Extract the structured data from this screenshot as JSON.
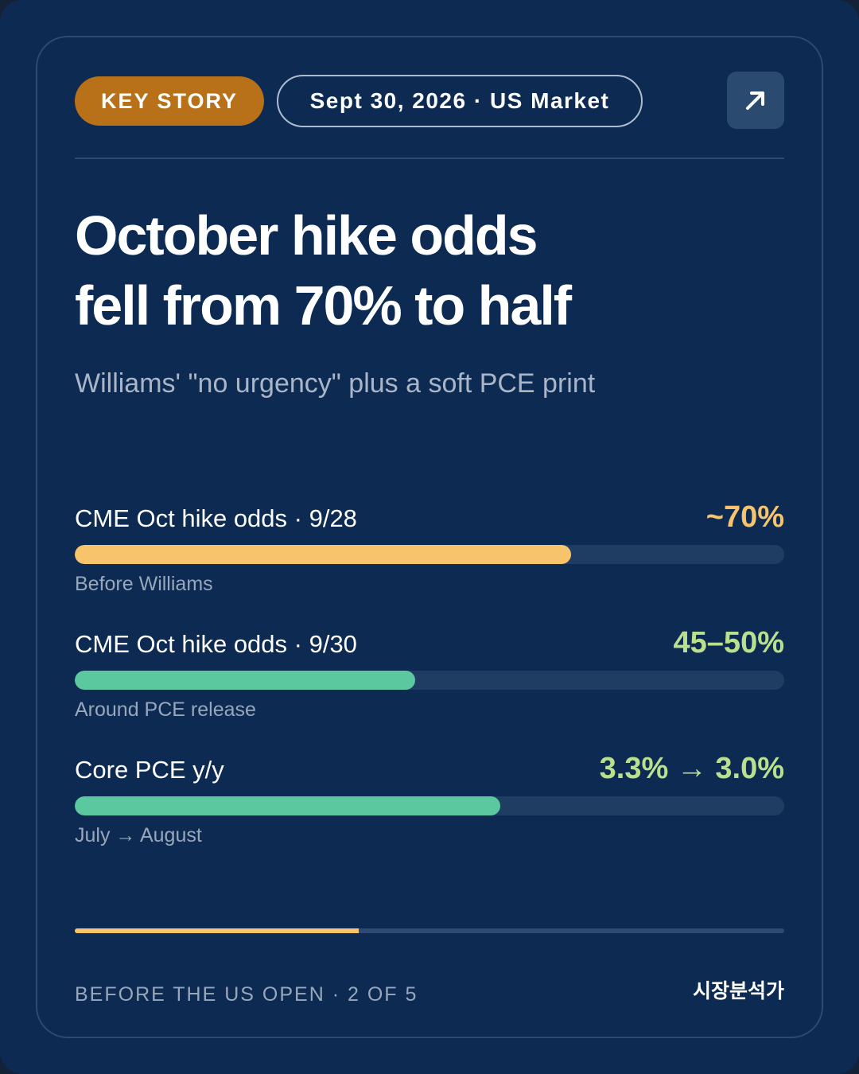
{
  "badge": {
    "label": "KEY STORY"
  },
  "meta": {
    "date_market": "Sept 30, 2026 · US Market"
  },
  "share": {
    "icon": "arrow-up-right-icon"
  },
  "headline": {
    "line1": "October hike odds",
    "line2": "fell from 70% to half"
  },
  "subhead": "Williams' \"no urgency\" plus a soft PCE print",
  "metrics": [
    {
      "label": "CME Oct hike odds · 9/28",
      "value": "~70%",
      "note": "Before Williams",
      "level": 0.7,
      "color": "#f7c46c",
      "value_color": "#f7c46c"
    },
    {
      "label": "CME Oct hike odds · 9/30",
      "value": "45–50%",
      "note": "Around PCE release",
      "level": 0.48,
      "color": "#5cc8a0",
      "value_color": "#b9e08c"
    },
    {
      "label": "Core PCE y/y",
      "value": "3.3% → 3.0%",
      "note": "July → August",
      "level": 0.6,
      "color": "#5cc8a0",
      "value_color": "#b9e08c"
    }
  ],
  "progress": {
    "current": 2,
    "total": 5,
    "level": 0.4
  },
  "footer": {
    "left": "BEFORE THE US OPEN · 2 OF 5",
    "right": "시장분석가"
  }
}
